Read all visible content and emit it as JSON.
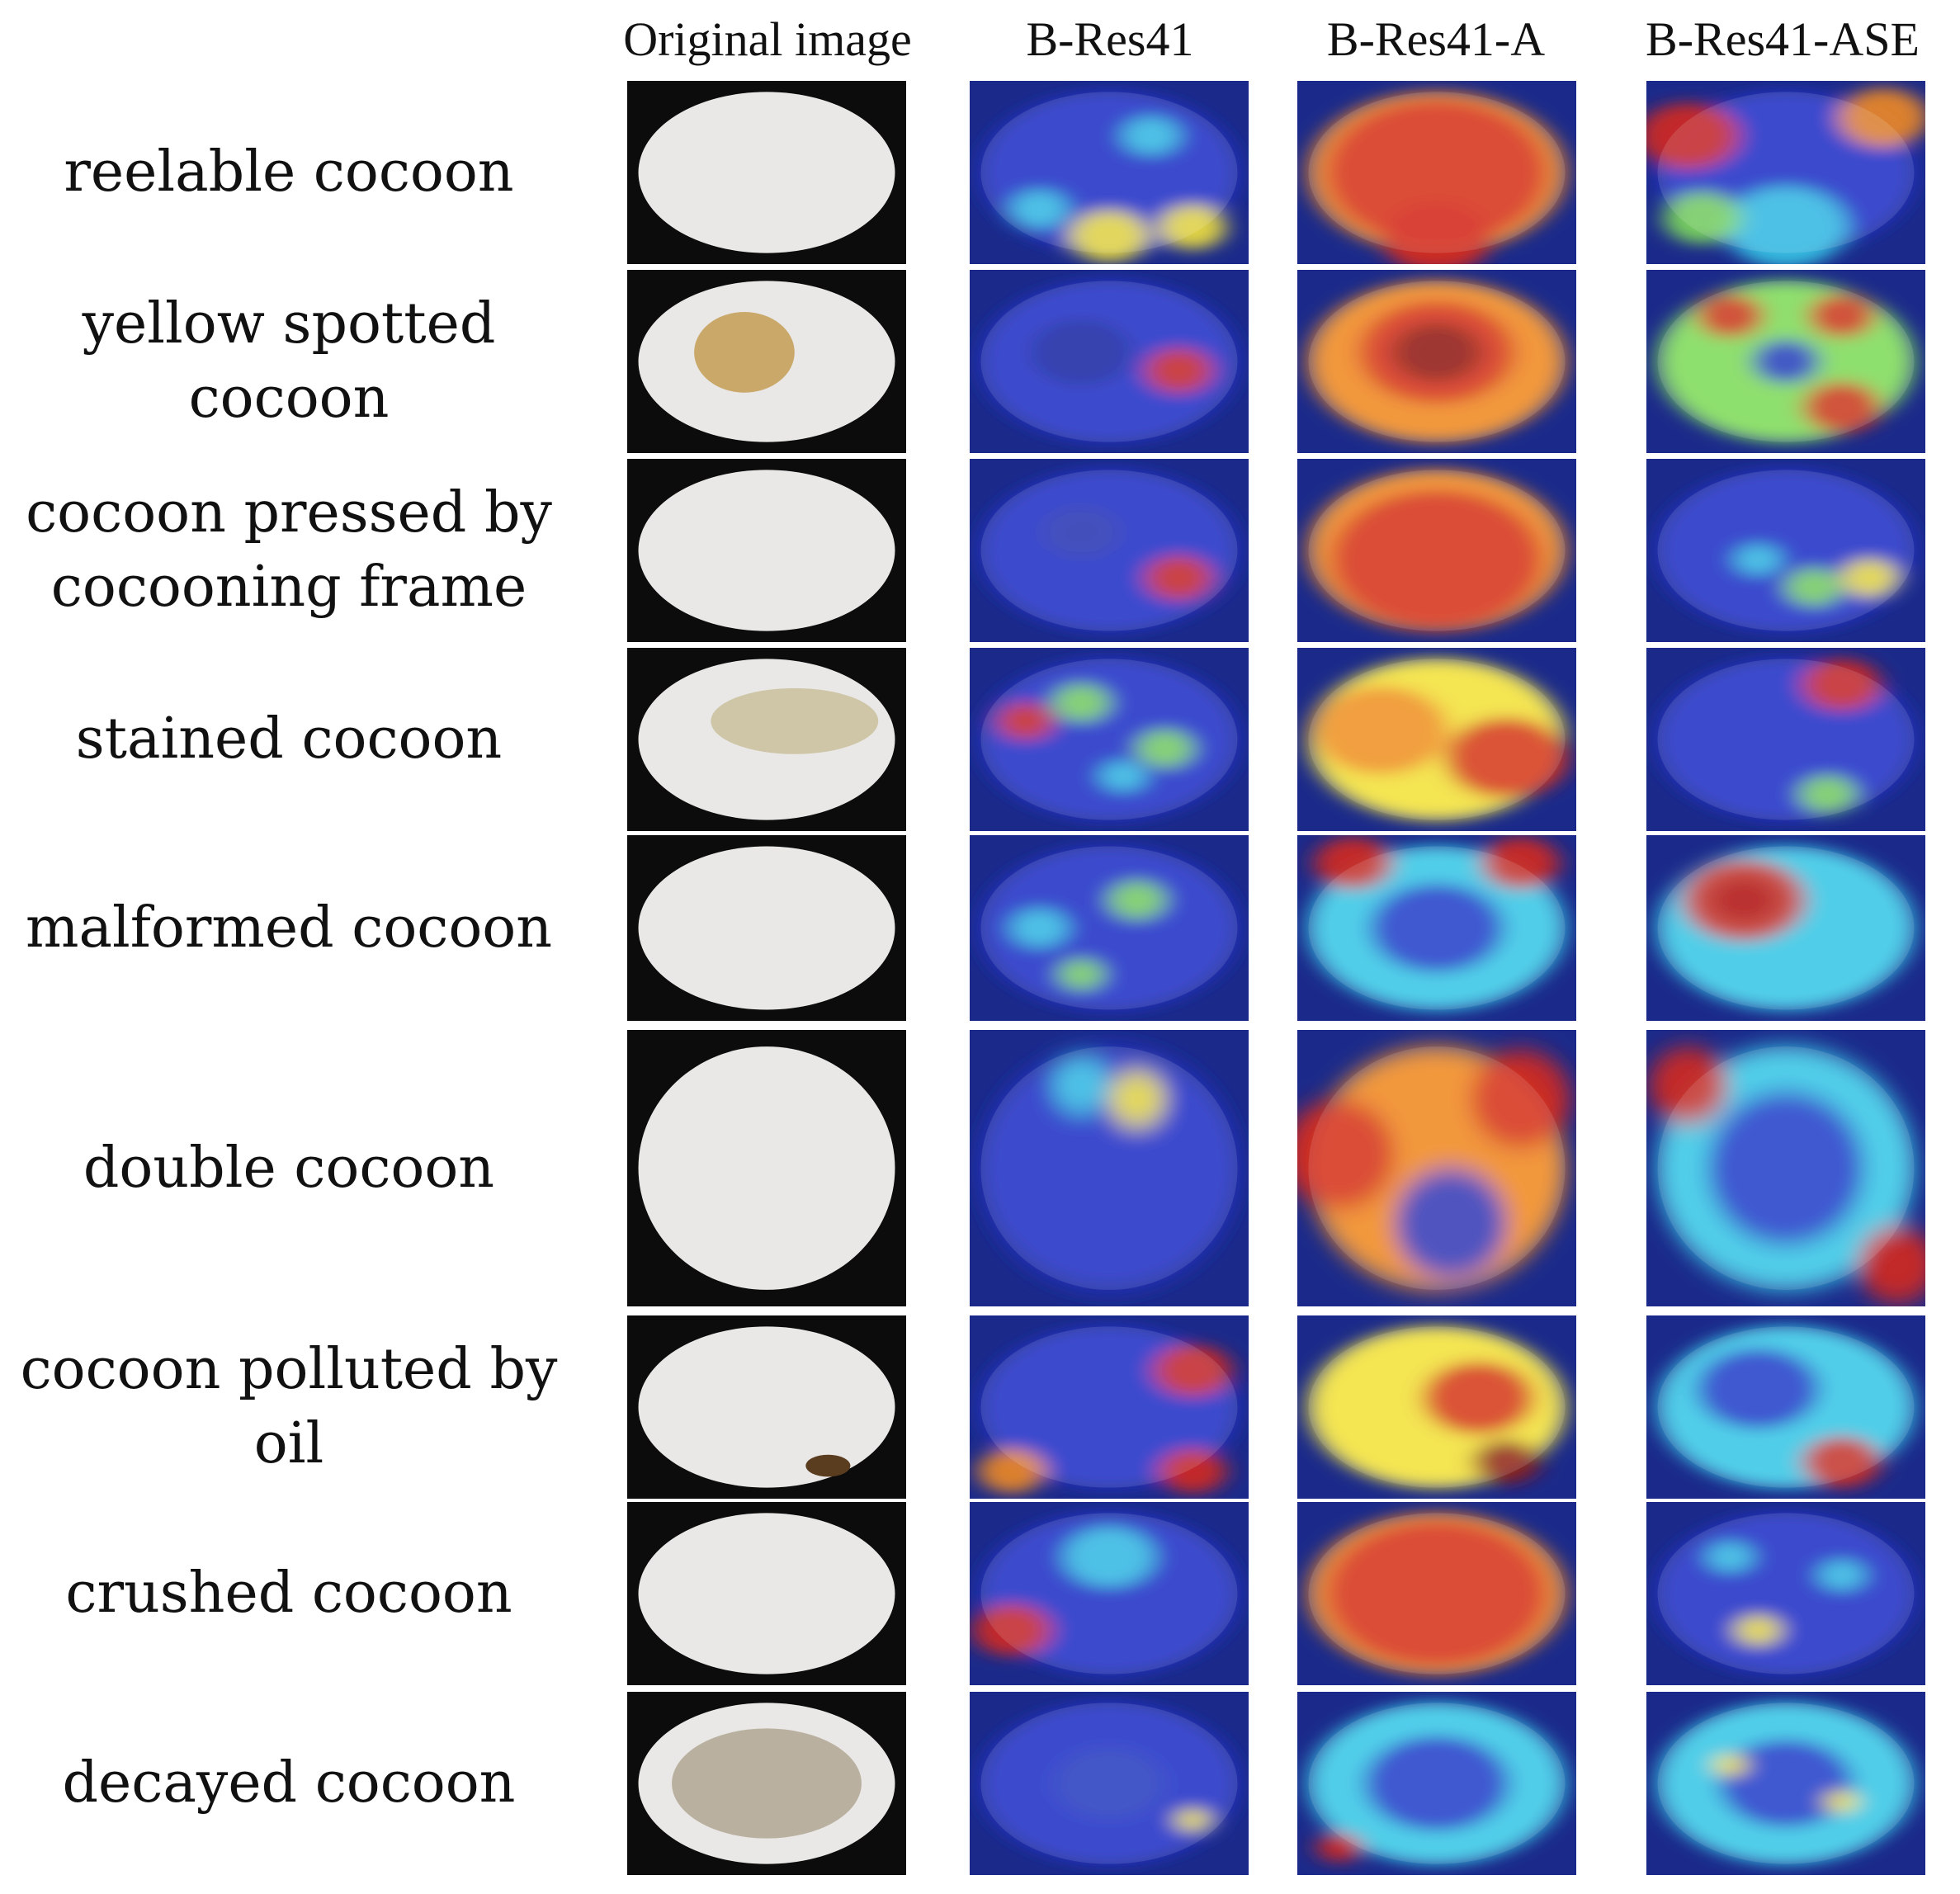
{
  "figure": {
    "columns": [
      "Original image",
      "B-Res41",
      "B-Res41-A",
      "B-Res41-ASE"
    ],
    "rows": [
      {
        "label_lines": [
          "reelable cocoon"
        ]
      },
      {
        "label_lines": [
          "yellow spotted",
          "cocoon"
        ]
      },
      {
        "label_lines": [
          "cocoon pressed by",
          "cocooning frame"
        ]
      },
      {
        "label_lines": [
          "stained cocoon"
        ]
      },
      {
        "label_lines": [
          "malformed cocoon"
        ]
      },
      {
        "label_lines": [
          "double cocoon"
        ]
      },
      {
        "label_lines": [
          "cocoon polluted by",
          "oil"
        ]
      },
      {
        "label_lines": [
          "crushed cocoon"
        ]
      },
      {
        "label_lines": [
          "decayed cocoon"
        ]
      }
    ]
  }
}
